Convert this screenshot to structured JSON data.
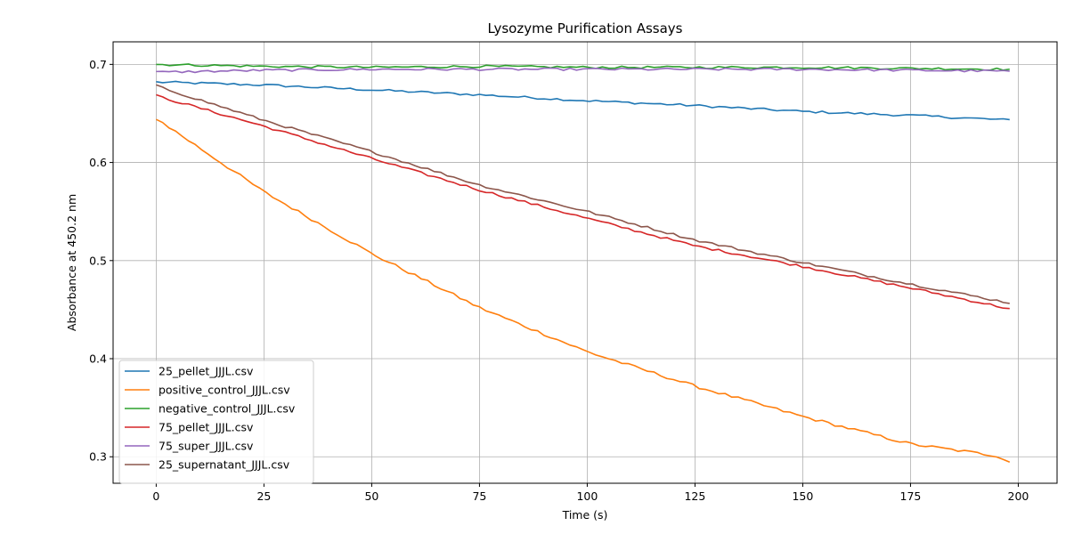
{
  "chart_data": {
    "type": "line",
    "title": "Lysozyme Purification Assays",
    "xlabel": "Time (s)",
    "ylabel": "Absorbance at 450.2 nm",
    "xlim": [
      -10,
      209
    ],
    "ylim": [
      0.273,
      0.723
    ],
    "xticks": [
      0,
      25,
      50,
      75,
      100,
      125,
      150,
      175,
      200
    ],
    "yticks": [
      0.3,
      0.4,
      0.5,
      0.6,
      0.7
    ],
    "grid": true,
    "legend_position": "lower-left",
    "x_range": {
      "start": 0,
      "end": 199,
      "step": 1.5
    },
    "series": [
      {
        "name": "25_pellet_JJJL.csv",
        "color": "#1f77b4",
        "anchors": [
          [
            0,
            0.682
          ],
          [
            25,
            0.679
          ],
          [
            50,
            0.674
          ],
          [
            75,
            0.669
          ],
          [
            100,
            0.663
          ],
          [
            125,
            0.658
          ],
          [
            150,
            0.652
          ],
          [
            175,
            0.648
          ],
          [
            199,
            0.643
          ]
        ],
        "noise": 0.0012
      },
      {
        "name": "positive_control_JJJL.csv",
        "color": "#ff7f0e",
        "anchors": [
          [
            0,
            0.645
          ],
          [
            25,
            0.57
          ],
          [
            50,
            0.507
          ],
          [
            75,
            0.452
          ],
          [
            100,
            0.407
          ],
          [
            125,
            0.372
          ],
          [
            150,
            0.341
          ],
          [
            175,
            0.313
          ],
          [
            195,
            0.301
          ],
          [
            199,
            0.293
          ]
        ],
        "noise": 0.0015
      },
      {
        "name": "negative_control_JJJL.csv",
        "color": "#2ca02c",
        "anchors": [
          [
            0,
            0.7
          ],
          [
            25,
            0.698
          ],
          [
            50,
            0.697
          ],
          [
            75,
            0.698
          ],
          [
            100,
            0.697
          ],
          [
            125,
            0.697
          ],
          [
            150,
            0.697
          ],
          [
            175,
            0.696
          ],
          [
            199,
            0.695
          ]
        ],
        "noise": 0.0012
      },
      {
        "name": "75_pellet_JJJL.csv",
        "color": "#d62728",
        "anchors": [
          [
            0,
            0.668
          ],
          [
            25,
            0.637
          ],
          [
            50,
            0.604
          ],
          [
            75,
            0.572
          ],
          [
            100,
            0.543
          ],
          [
            125,
            0.515
          ],
          [
            150,
            0.494
          ],
          [
            175,
            0.472
          ],
          [
            199,
            0.45
          ]
        ],
        "noise": 0.0012
      },
      {
        "name": "75_super_JJJL.csv",
        "color": "#9467bd",
        "anchors": [
          [
            0,
            0.692
          ],
          [
            25,
            0.694
          ],
          [
            50,
            0.695
          ],
          [
            75,
            0.695
          ],
          [
            100,
            0.695
          ],
          [
            125,
            0.695
          ],
          [
            150,
            0.695
          ],
          [
            175,
            0.694
          ],
          [
            199,
            0.693
          ]
        ],
        "noise": 0.0012
      },
      {
        "name": "25_supernatant_JJJL.csv",
        "color": "#8c564b",
        "anchors": [
          [
            0,
            0.678
          ],
          [
            25,
            0.643
          ],
          [
            50,
            0.611
          ],
          [
            75,
            0.577
          ],
          [
            100,
            0.55
          ],
          [
            125,
            0.521
          ],
          [
            150,
            0.498
          ],
          [
            175,
            0.476
          ],
          [
            199,
            0.456
          ]
        ],
        "noise": 0.0012
      }
    ]
  }
}
